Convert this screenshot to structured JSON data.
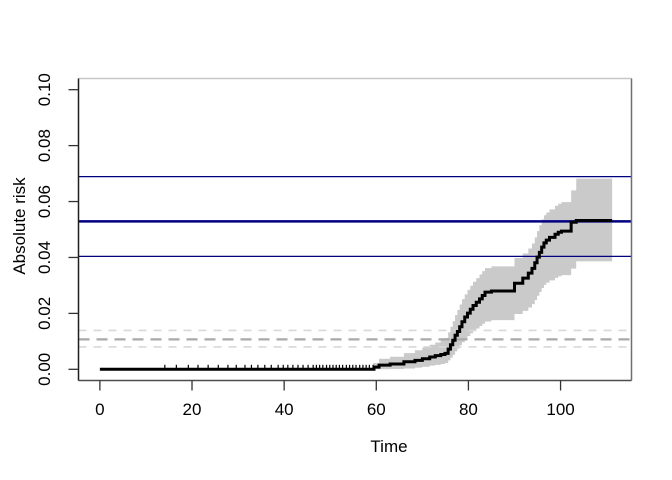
{
  "figure": {
    "background": "#ffffff"
  },
  "chart_data": {
    "type": "line",
    "subtype": "step-function-with-confidence-band",
    "title": "",
    "xlabel": "Time",
    "ylabel": "Absolute risk",
    "xlim": [
      -4.64,
      115.4
    ],
    "ylim": [
      -0.004,
      0.104
    ],
    "x_ticks": [
      0,
      20,
      40,
      60,
      80,
      100
    ],
    "x_tick_labels": [
      "0",
      "20",
      "40",
      "60",
      "80",
      "100"
    ],
    "y_ticks": [
      0.0,
      0.02,
      0.04,
      0.06,
      0.08,
      0.1
    ],
    "y_tick_labels": [
      "0.00",
      "0.02",
      "0.04",
      "0.06",
      "0.08",
      "0.10"
    ],
    "grid": false,
    "legend": null,
    "colors": {
      "curve": "#000000",
      "band": "#cacaca",
      "reference_navy": "#000080",
      "reference_dash_mid": "#a9a9a9",
      "reference_dash_outer": "#d8d8d8",
      "box_top": "#c8c8c8",
      "box_right": "#6f6f6f",
      "box_bottom": "#4d4d4d",
      "box_left": "#1f1f1f",
      "tick": "#333333"
    },
    "series": [
      {
        "name": "absolute-risk-estimate",
        "type": "step",
        "color": "#000000",
        "width": 3,
        "points": [
          [
            0,
            0
          ],
          [
            59.5,
            0.0008
          ],
          [
            60.6,
            0.0015
          ],
          [
            63.0,
            0.0019
          ],
          [
            66.0,
            0.0027
          ],
          [
            68.4,
            0.0032
          ],
          [
            70.0,
            0.0038
          ],
          [
            71.6,
            0.0044
          ],
          [
            72.8,
            0.0049
          ],
          [
            74.0,
            0.0053
          ],
          [
            74.9,
            0.0057
          ],
          [
            75.6,
            0.0072
          ],
          [
            76.1,
            0.0088
          ],
          [
            76.6,
            0.0104
          ],
          [
            77.1,
            0.0122
          ],
          [
            77.6,
            0.0135
          ],
          [
            78.1,
            0.0152
          ],
          [
            78.6,
            0.017
          ],
          [
            79.2,
            0.0187
          ],
          [
            79.8,
            0.0201
          ],
          [
            80.4,
            0.0215
          ],
          [
            81.0,
            0.0228
          ],
          [
            81.7,
            0.024
          ],
          [
            82.4,
            0.0252
          ],
          [
            83.0,
            0.0264
          ],
          [
            83.6,
            0.0276
          ],
          [
            85.0,
            0.028
          ],
          [
            90.0,
            0.0308
          ],
          [
            91.8,
            0.0326
          ],
          [
            93.0,
            0.0344
          ],
          [
            93.8,
            0.0361
          ],
          [
            94.4,
            0.0381
          ],
          [
            94.9,
            0.0401
          ],
          [
            95.4,
            0.0418
          ],
          [
            95.9,
            0.0437
          ],
          [
            96.4,
            0.0452
          ],
          [
            96.9,
            0.0462
          ],
          [
            97.6,
            0.0472
          ],
          [
            98.8,
            0.0483
          ],
          [
            99.5,
            0.049
          ],
          [
            100.2,
            0.0494
          ],
          [
            102.3,
            0.0526
          ],
          [
            103.4,
            0.0532
          ],
          [
            111.2,
            0.0532
          ]
        ]
      },
      {
        "name": "confidence-band",
        "type": "band",
        "color": "#cacaca",
        "points": [
          [
            59.3,
            0.0,
            0.0022
          ],
          [
            60.6,
            0.0,
            0.0038
          ],
          [
            63.0,
            0.0001,
            0.0045
          ],
          [
            66.0,
            0.0003,
            0.0058
          ],
          [
            68.4,
            0.0006,
            0.0068
          ],
          [
            70.0,
            0.0009,
            0.0078
          ],
          [
            71.6,
            0.0013,
            0.0088
          ],
          [
            72.8,
            0.0016,
            0.0096
          ],
          [
            74.0,
            0.0019,
            0.0104
          ],
          [
            74.9,
            0.0022,
            0.0112
          ],
          [
            75.6,
            0.0032,
            0.0132
          ],
          [
            76.1,
            0.0042,
            0.0152
          ],
          [
            76.6,
            0.0052,
            0.0172
          ],
          [
            77.1,
            0.0064,
            0.0194
          ],
          [
            77.6,
            0.0074,
            0.0212
          ],
          [
            78.1,
            0.0086,
            0.0232
          ],
          [
            78.6,
            0.0097,
            0.0251
          ],
          [
            79.2,
            0.0108,
            0.0268
          ],
          [
            79.8,
            0.0119,
            0.0284
          ],
          [
            80.4,
            0.0129,
            0.0299
          ],
          [
            81.0,
            0.0138,
            0.0313
          ],
          [
            81.7,
            0.0146,
            0.0326
          ],
          [
            82.4,
            0.0155,
            0.0339
          ],
          [
            83.0,
            0.0163,
            0.0351
          ],
          [
            83.6,
            0.0171,
            0.0362
          ],
          [
            85.0,
            0.0176,
            0.0368
          ],
          [
            90.0,
            0.0198,
            0.0398
          ],
          [
            91.8,
            0.0209,
            0.0414
          ],
          [
            93.0,
            0.0221,
            0.0432
          ],
          [
            93.8,
            0.0233,
            0.045
          ],
          [
            94.4,
            0.0248,
            0.0472
          ],
          [
            94.9,
            0.0263,
            0.0494
          ],
          [
            95.4,
            0.0277,
            0.0515
          ],
          [
            95.9,
            0.0291,
            0.0536
          ],
          [
            96.4,
            0.0302,
            0.0551
          ],
          [
            96.9,
            0.031,
            0.0561
          ],
          [
            97.6,
            0.0318,
            0.0572
          ],
          [
            98.8,
            0.0327,
            0.0585
          ],
          [
            99.5,
            0.0333,
            0.0592
          ],
          [
            100.2,
            0.0337,
            0.0598
          ],
          [
            102.3,
            0.036,
            0.064
          ],
          [
            103.4,
            0.0386,
            0.0682
          ],
          [
            111.2,
            0.0386,
            0.0682
          ]
        ]
      }
    ],
    "hlines": [
      {
        "name": "final-estimate-upper-ci",
        "y": 0.0689,
        "color": "#000080",
        "style": "solid",
        "width": 1.3
      },
      {
        "name": "final-estimate",
        "y": 0.0529,
        "color": "#000080",
        "style": "solid",
        "width": 2.5
      },
      {
        "name": "final-estimate-lower-ci",
        "y": 0.0404,
        "color": "#000080",
        "style": "solid",
        "width": 1.3
      },
      {
        "name": "reference-upper-ci",
        "y": 0.0139,
        "color": "#d8d8d8",
        "style": "dashed",
        "width": 1.6,
        "dash": "8 7"
      },
      {
        "name": "reference-estimate",
        "y": 0.0107,
        "color": "#a9a9a9",
        "style": "dashed",
        "width": 2.2,
        "dash": "11 7"
      },
      {
        "name": "reference-lower-ci",
        "y": 0.008,
        "color": "#d8d8d8",
        "style": "dashed",
        "width": 1.6,
        "dash": "8 7"
      }
    ],
    "censor_times": [
      14.1,
      16.6,
      19.2,
      21.3,
      23.5,
      25.7,
      27.8,
      29.6,
      31.5,
      32.9,
      34.3,
      35.8,
      37.2,
      38.7,
      39.8,
      40.8,
      41.9,
      43.0,
      44.1,
      45.2,
      46.3,
      47.0,
      47.7,
      48.4,
      49.2,
      49.9,
      50.6,
      51.3,
      52.0,
      52.7,
      53.5,
      54.2,
      54.9,
      55.6,
      56.4,
      57.1,
      57.8,
      58.5,
      59.3
    ]
  }
}
